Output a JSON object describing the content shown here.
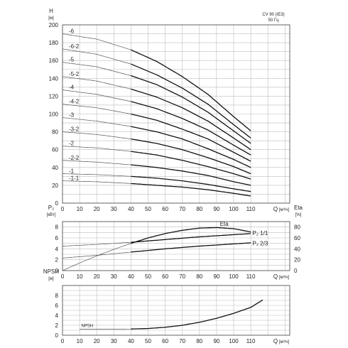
{
  "chart_data": [
    {
      "type": "line",
      "title": "CV 90 (IE3)",
      "subtitle": "50 Гц",
      "ylabel": "H",
      "yunit": "[м]",
      "xlabel": "Q",
      "xunit": "[м³/ч]",
      "xlim": [
        0,
        120
      ],
      "ylim": [
        0,
        200
      ],
      "xticks": [
        0,
        10,
        20,
        30,
        40,
        50,
        60,
        70,
        80,
        90,
        100,
        110
      ],
      "yticks": [
        0,
        20,
        40,
        60,
        80,
        100,
        120,
        140,
        160,
        180,
        200
      ],
      "grid": true,
      "series": [
        {
          "name": "-6",
          "x": [
            0,
            20,
            40,
            55,
            70,
            85,
            100,
            110
          ],
          "y": [
            190,
            184,
            172,
            159,
            142,
            122,
            97,
            81
          ],
          "bold_from": 40
        },
        {
          "name": "-6-2",
          "x": [
            0,
            20,
            40,
            55,
            70,
            85,
            100,
            110
          ],
          "y": [
            173,
            167,
            156,
            144,
            129,
            111,
            88,
            73
          ],
          "bold_from": 40
        },
        {
          "name": "-5",
          "x": [
            0,
            20,
            40,
            55,
            70,
            85,
            100,
            110
          ],
          "y": [
            158,
            153,
            143,
            133,
            119,
            102,
            81,
            67
          ],
          "bold_from": 40
        },
        {
          "name": "-5-2",
          "x": [
            0,
            20,
            40,
            55,
            70,
            85,
            100,
            110
          ],
          "y": [
            142,
            137,
            128,
            119,
            107,
            92,
            73,
            60
          ],
          "bold_from": 40
        },
        {
          "name": "-4",
          "x": [
            0,
            20,
            40,
            55,
            70,
            85,
            100,
            110
          ],
          "y": [
            127,
            122,
            114,
            106,
            95,
            82,
            65,
            54
          ],
          "bold_from": 40
        },
        {
          "name": "-4-2",
          "x": [
            0,
            20,
            40,
            55,
            70,
            85,
            100,
            110
          ],
          "y": [
            111,
            107,
            100,
            93,
            83,
            72,
            57,
            47
          ],
          "bold_from": 40
        },
        {
          "name": "-3",
          "x": [
            0,
            20,
            40,
            55,
            70,
            85,
            100,
            110
          ],
          "y": [
            96,
            92,
            86,
            80,
            72,
            61,
            49,
            40
          ],
          "bold_from": 40
        },
        {
          "name": "-3-2",
          "x": [
            0,
            20,
            40,
            55,
            70,
            85,
            100,
            110
          ],
          "y": [
            80,
            77,
            72,
            67,
            60,
            51,
            41,
            33
          ],
          "bold_from": 40
        },
        {
          "name": "-2",
          "x": [
            0,
            20,
            40,
            55,
            70,
            85,
            100,
            110
          ],
          "y": [
            64,
            62,
            58,
            54,
            48,
            41,
            33,
            27
          ],
          "bold_from": 40
        },
        {
          "name": "-2-2",
          "x": [
            0,
            20,
            40,
            55,
            70,
            85,
            100,
            110
          ],
          "y": [
            48,
            46,
            43,
            40,
            36,
            31,
            24,
            20
          ],
          "bold_from": 40
        },
        {
          "name": "-1",
          "x": [
            0,
            20,
            40,
            55,
            70,
            85,
            100,
            110
          ],
          "y": [
            33,
            32,
            30,
            28,
            25,
            21,
            16,
            13
          ],
          "bold_from": 40
        },
        {
          "name": "-1-1",
          "x": [
            0,
            20,
            40,
            55,
            70,
            85,
            100,
            110
          ],
          "y": [
            25,
            24,
            22,
            20,
            18,
            15,
            11,
            8
          ],
          "bold_from": 40
        }
      ]
    },
    {
      "type": "line",
      "ylabel": "P₂",
      "yunit": "[кВт]",
      "y2label": "Eta",
      "y2unit": "[%]",
      "xlabel": "Q",
      "xunit": "[м³/ч]",
      "xlim": [
        0,
        120
      ],
      "ylim": [
        0,
        9
      ],
      "y2lim": [
        0,
        90
      ],
      "xticks": [
        0,
        10,
        20,
        30,
        40,
        50,
        60,
        70,
        80,
        90,
        100,
        110
      ],
      "yticks": [
        0,
        2,
        4,
        6,
        8
      ],
      "y2ticks": [
        0,
        20,
        40,
        60,
        80
      ],
      "grid": true,
      "series": [
        {
          "name": "Eta",
          "axis": "right",
          "x": [
            0,
            10,
            20,
            30,
            40,
            50,
            60,
            70,
            80,
            90,
            100,
            110
          ],
          "y": [
            0,
            14,
            27,
            39,
            50,
            60,
            68,
            74,
            78,
            79,
            77,
            71
          ],
          "bold_from": 40
        },
        {
          "name": "P₂ 1/1",
          "axis": "left",
          "x": [
            0,
            20,
            40,
            60,
            80,
            100,
            110
          ],
          "y": [
            4.5,
            4.8,
            5.2,
            5.7,
            6.2,
            6.6,
            6.8
          ],
          "bold_from": 40
        },
        {
          "name": "P₂ 2/3",
          "axis": "left",
          "x": [
            0,
            20,
            40,
            60,
            80,
            100,
            110
          ],
          "y": [
            2.3,
            2.8,
            3.4,
            4.0,
            4.5,
            4.9,
            5.1
          ],
          "bold_from": 40
        }
      ]
    },
    {
      "type": "line",
      "ylabel": "NPSH",
      "yunit": "[м]",
      "xlabel": "Q",
      "xunit": "[м³/ч]",
      "xlim": [
        0,
        120
      ],
      "ylim": [
        0,
        10
      ],
      "xticks": [
        0,
        10,
        20,
        30,
        40,
        50,
        60,
        70,
        80,
        90,
        100,
        110
      ],
      "yticks": [
        0,
        2,
        4,
        6,
        8
      ],
      "grid": true,
      "series": [
        {
          "name": "NPSH",
          "x": [
            10,
            20,
            30,
            40,
            50,
            60,
            70,
            80,
            90,
            100,
            110,
            117
          ],
          "y": [
            1.2,
            1.2,
            1.2,
            1.25,
            1.35,
            1.6,
            2.0,
            2.6,
            3.4,
            4.4,
            5.6,
            7.1
          ],
          "bold_from": 40
        }
      ]
    }
  ]
}
